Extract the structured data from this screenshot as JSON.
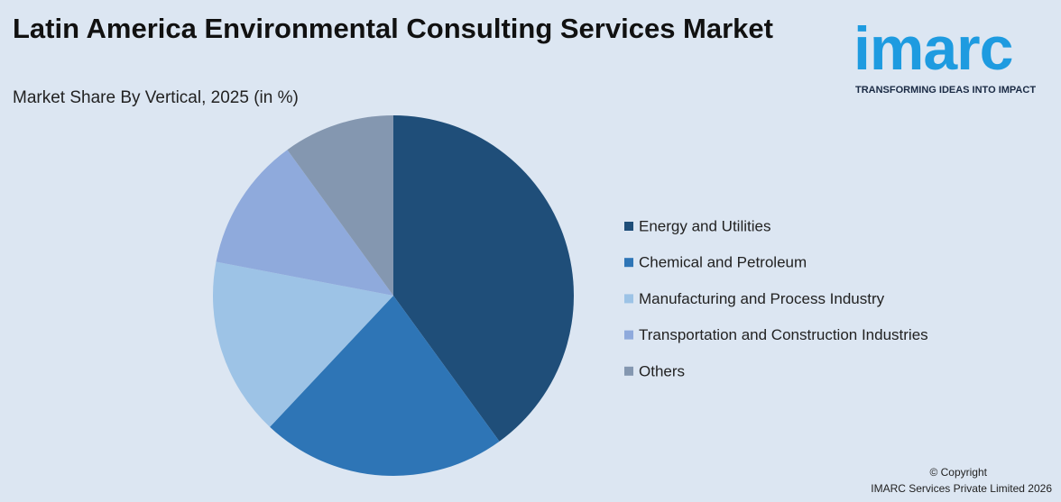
{
  "chart_data": {
    "type": "pie",
    "title": "Latin America Environmental Consulting Services Market",
    "subtitle": "Market Share By Vertical, 2025 (in %)",
    "categories": [
      "Energy and Utilities",
      "Chemical and Petroleum",
      "Manufacturing and Process Industry",
      "Transportation and Construction Industries",
      "Others"
    ],
    "values": [
      40,
      22,
      16,
      12,
      10
    ],
    "colors": [
      "#1f4e79",
      "#2e75b6",
      "#9dc3e6",
      "#8faadc",
      "#8497b0"
    ],
    "legend": "right"
  },
  "logo": {
    "name": "imarc",
    "tagline": "TRANSFORMING IDEAS INTO IMPACT"
  },
  "footer": {
    "copyright": "© Copyright",
    "company": "IMARC Services Private Limited 2026"
  }
}
